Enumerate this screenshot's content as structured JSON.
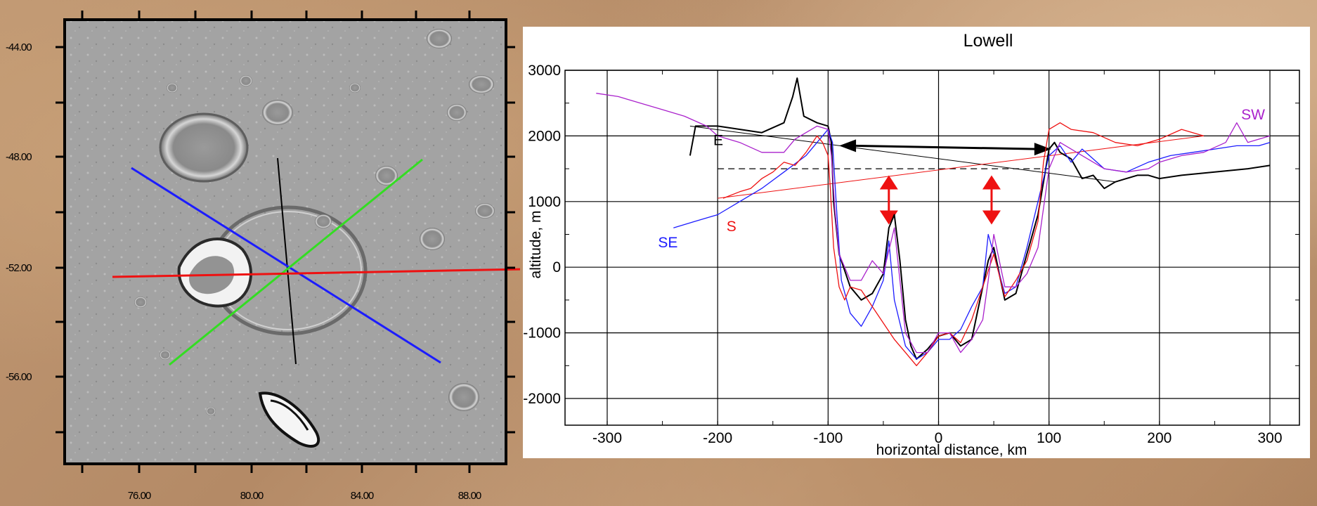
{
  "map": {
    "x_ticks": [
      "76.00",
      "80.00",
      "84.00",
      "88.00"
    ],
    "y_ticks": [
      "-44.00",
      "-48.00",
      "-52.00",
      "-56.00"
    ],
    "profile_lines": [
      {
        "name": "black",
        "color": "#000000"
      },
      {
        "name": "blue",
        "color": "#1c1cff"
      },
      {
        "name": "green",
        "color": "#33dd22"
      },
      {
        "name": "red",
        "color": "#ee1111"
      }
    ]
  },
  "chart_data": {
    "type": "line",
    "title": "Lowell",
    "xlabel": "horizontal distance, km",
    "ylabel": "altitude, m",
    "xlim": [
      -300,
      300
    ],
    "ylim": [
      -2000,
      3000
    ],
    "x_ticks": [
      "-300",
      "-200",
      "-100",
      "0",
      "100",
      "200",
      "300"
    ],
    "y_ticks": [
      "3000",
      "2000",
      "1000",
      "0",
      "-1000",
      "-2000"
    ],
    "grid": true,
    "series": [
      {
        "name": "E",
        "color": "#000000",
        "x": [
          -225,
          -220,
          -200,
          -160,
          -140,
          -132,
          -128,
          -122,
          -110,
          -100,
          -97,
          -95,
          -90,
          -80,
          -70,
          -60,
          -50,
          -45,
          -40,
          -35,
          -30,
          -25,
          -20,
          -10,
          0,
          10,
          20,
          30,
          35,
          40,
          45,
          50,
          55,
          60,
          70,
          80,
          90,
          100,
          105,
          110,
          120,
          130,
          140,
          150,
          160,
          170,
          180,
          190,
          200,
          220,
          250,
          280,
          300
        ],
        "y": [
          1700,
          2150,
          2150,
          2050,
          2200,
          2600,
          2880,
          2300,
          2200,
          2150,
          1900,
          1000,
          200,
          -300,
          -500,
          -400,
          -100,
          600,
          800,
          100,
          -800,
          -1200,
          -1400,
          -1250,
          -1050,
          -1000,
          -1200,
          -1100,
          -700,
          -300,
          100,
          300,
          -100,
          -500,
          -400,
          200,
          800,
          1800,
          1900,
          1750,
          1650,
          1350,
          1400,
          1200,
          1300,
          1350,
          1400,
          1400,
          1350,
          1400,
          1450,
          1500,
          1550
        ]
      },
      {
        "name": "SE",
        "color": "#1c1cff",
        "x": [
          -240,
          -220,
          -200,
          -180,
          -160,
          -140,
          -120,
          -110,
          -100,
          -96,
          -92,
          -88,
          -80,
          -70,
          -60,
          -50,
          -45,
          -40,
          -30,
          -20,
          -10,
          0,
          10,
          20,
          30,
          40,
          45,
          50,
          60,
          70,
          80,
          90,
          100,
          110,
          120,
          130,
          150,
          170,
          190,
          210,
          230,
          250,
          270,
          290,
          300
        ],
        "y": [
          600,
          700,
          800,
          1000,
          1200,
          1450,
          1700,
          1900,
          2100,
          1900,
          800,
          -200,
          -700,
          -900,
          -600,
          -200,
          400,
          -500,
          -1200,
          -1400,
          -1300,
          -1100,
          -1100,
          -950,
          -600,
          -300,
          500,
          200,
          -400,
          -300,
          300,
          1000,
          1700,
          1850,
          1600,
          1800,
          1500,
          1450,
          1600,
          1700,
          1750,
          1800,
          1850,
          1850,
          1900
        ]
      },
      {
        "name": "S",
        "color": "#ee1111",
        "x": [
          -195,
          -180,
          -170,
          -160,
          -150,
          -140,
          -130,
          -120,
          -110,
          -105,
          -100,
          -98,
          -95,
          -90,
          -85,
          -80,
          -70,
          -60,
          -50,
          -40,
          -30,
          -20,
          -10,
          0,
          10,
          20,
          30,
          40,
          50,
          60,
          70,
          80,
          90,
          95,
          100,
          110,
          120,
          140,
          160,
          180,
          200,
          220,
          240
        ],
        "y": [
          1050,
          1150,
          1200,
          1350,
          1450,
          1600,
          1550,
          1750,
          2000,
          1900,
          1700,
          1200,
          300,
          -300,
          -500,
          -300,
          -350,
          -600,
          -850,
          -1100,
          -1300,
          -1500,
          -1300,
          -1050,
          -1000,
          -1150,
          -800,
          -300,
          200,
          -450,
          -200,
          100,
          700,
          1600,
          2100,
          2200,
          2100,
          2050,
          1900,
          1850,
          1950,
          2100,
          2000
        ]
      },
      {
        "name": "SW",
        "color": "#aa22cc",
        "x": [
          -310,
          -290,
          -270,
          -250,
          -230,
          -210,
          -200,
          -180,
          -160,
          -140,
          -130,
          -120,
          -110,
          -100,
          -97,
          -94,
          -90,
          -80,
          -70,
          -60,
          -50,
          -40,
          -35,
          -30,
          -20,
          -10,
          0,
          10,
          20,
          30,
          40,
          45,
          50,
          60,
          70,
          80,
          90,
          100,
          110,
          120,
          130,
          150,
          170,
          190,
          200,
          220,
          240,
          260,
          270,
          280,
          300
        ],
        "y": [
          2650,
          2600,
          2500,
          2400,
          2300,
          2150,
          2000,
          1900,
          1750,
          1750,
          1950,
          2050,
          2150,
          2100,
          1700,
          900,
          200,
          -200,
          -200,
          100,
          -100,
          600,
          -200,
          -1000,
          -1300,
          -1300,
          -1000,
          -1000,
          -1300,
          -1100,
          -800,
          -200,
          500,
          -300,
          -300,
          -100,
          300,
          1500,
          1900,
          1800,
          1700,
          1500,
          1450,
          1500,
          1600,
          1700,
          1750,
          1900,
          2200,
          1900,
          2000
        ]
      }
    ],
    "annotations": {
      "reference_level_m": 1500,
      "rim_arrow_x": [
        -90,
        102
      ],
      "rim_arrow_y": [
        1850,
        1800
      ],
      "peak_arrows": [
        {
          "x": -45,
          "y_top": 1400,
          "y_bottom": 650
        },
        {
          "x": 48,
          "y_top": 1400,
          "y_bottom": 650
        }
      ],
      "trend_E": {
        "x": [
          -225,
          160
        ],
        "y": [
          2150,
          1300
        ]
      },
      "trend_S": {
        "x": [
          -200,
          240
        ],
        "y": [
          1050,
          2000
        ]
      }
    }
  }
}
